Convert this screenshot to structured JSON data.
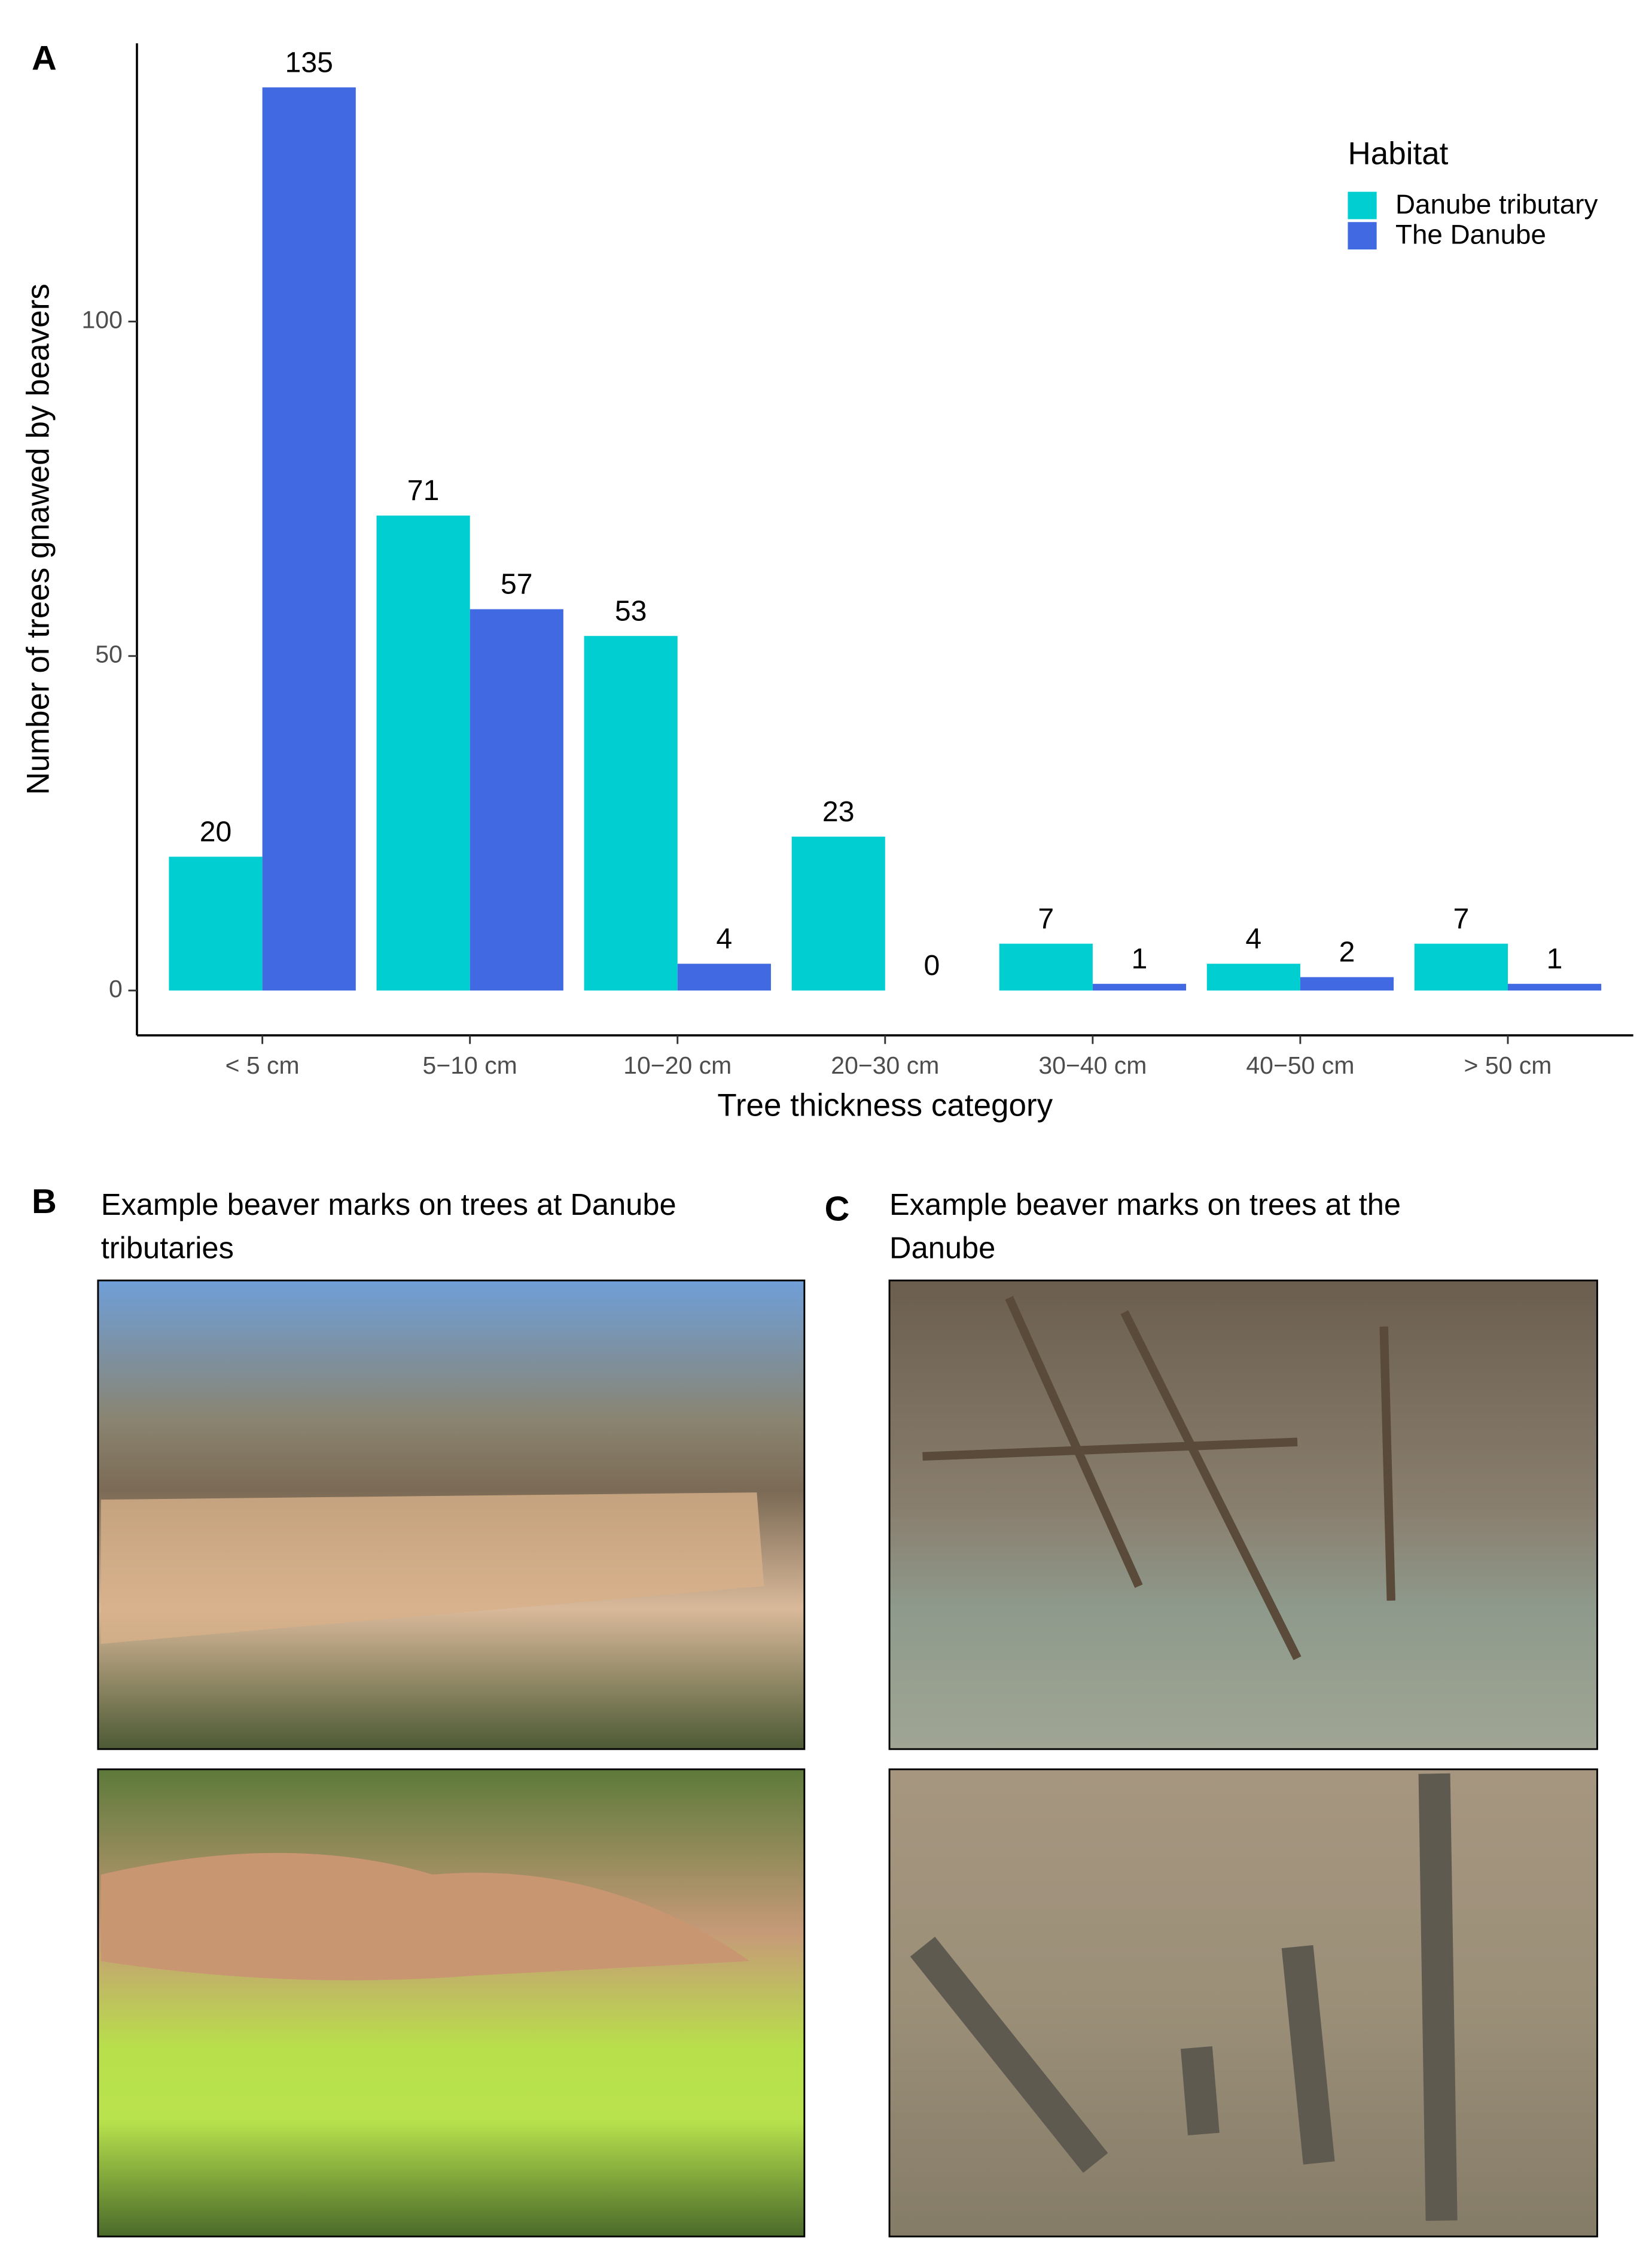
{
  "chart_data": {
    "type": "bar",
    "panel_label": "A",
    "x_label": "Tree thickness category",
    "y_label": "Number of trees gnawed by beavers",
    "categories": [
      "< 5 cm",
      "5−10 cm",
      "10−20 cm",
      "20−30 cm",
      "30−40 cm",
      "40−50 cm",
      "> 50 cm"
    ],
    "series": [
      {
        "name": "Danube tributary",
        "color": "#00CED1",
        "values": [
          20,
          71,
          53,
          23,
          7,
          4,
          7
        ]
      },
      {
        "name": "The Danube",
        "color": "#4169E1",
        "values": [
          135,
          57,
          4,
          0,
          1,
          2,
          1
        ]
      }
    ],
    "legend_title": "Habitat",
    "legend_position": "top-right",
    "ylim": [
      -6.7,
      141.6
    ],
    "yticks": [
      0,
      50,
      100
    ],
    "grid": false
  },
  "panels": [
    {
      "label": "B",
      "title_lines": [
        "Example beaver marks on trees at Danube",
        "tributaries"
      ]
    },
    {
      "label": "C",
      "title_lines": [
        "Example beaver marks on trees at the",
        "Danube"
      ]
    }
  ]
}
